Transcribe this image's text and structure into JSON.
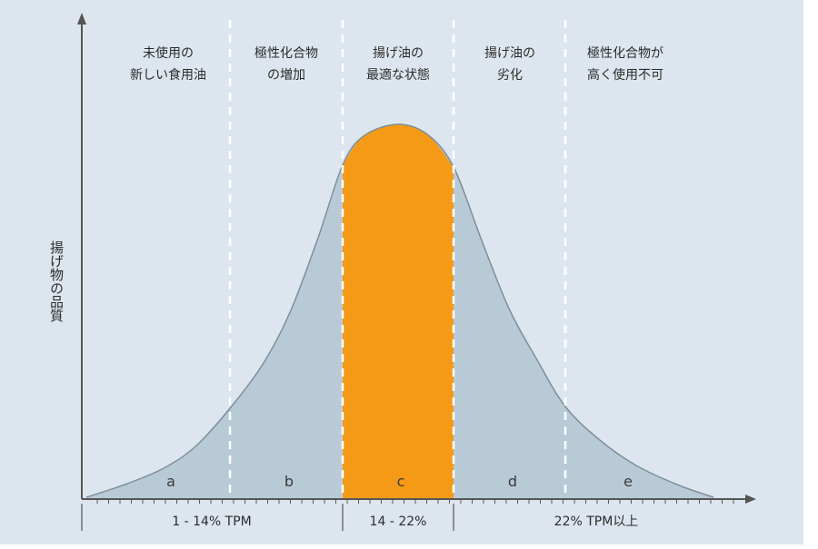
{
  "colors": {
    "background": "#dde6ee",
    "curve_fill": "#b9cad7",
    "curve_stroke": "#7d8f9b",
    "highlight": "#f49a17",
    "divider": "#ffffff",
    "axis": "#555555"
  },
  "chart_data": {
    "type": "area",
    "title": "",
    "xlabel": "",
    "ylabel": "揚げ物の品質",
    "shape": "bell-curve",
    "highlight_zone": "c",
    "zones": [
      {
        "letter": "a",
        "label_lines": [
          "未使用の",
          "新しい食用油"
        ]
      },
      {
        "letter": "b",
        "label_lines": [
          "極性化合物",
          "の増加"
        ]
      },
      {
        "letter": "c",
        "label_lines": [
          "揚げ油の",
          "最適な状態"
        ]
      },
      {
        "letter": "d",
        "label_lines": [
          "揚げ油の",
          "劣化"
        ]
      },
      {
        "letter": "e",
        "label_lines": [
          "極性化合物が",
          "高く使用不可"
        ]
      }
    ],
    "ranges": [
      {
        "label": "1 - 14% TPM"
      },
      {
        "label": "14 - 22%"
      },
      {
        "label": "22% TPM以上"
      }
    ]
  }
}
